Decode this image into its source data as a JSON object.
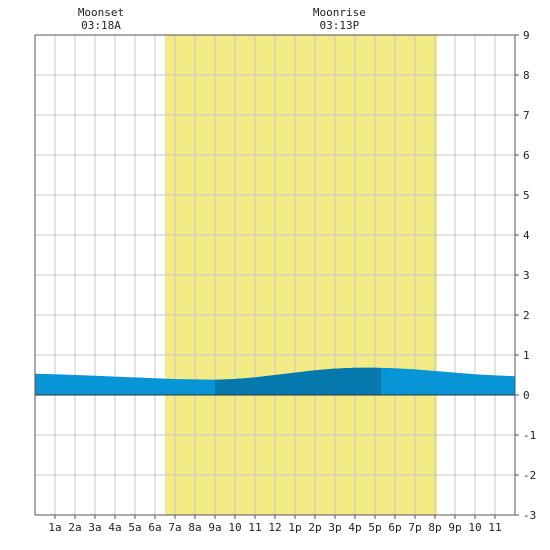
{
  "chart_data": {
    "type": "area",
    "title": "",
    "xlabel": "",
    "ylabel": "",
    "x_tick_labels": [
      "1a",
      "2a",
      "3a",
      "4a",
      "5a",
      "6a",
      "7a",
      "8a",
      "9a",
      "10",
      "11",
      "12",
      "1p",
      "2p",
      "3p",
      "4p",
      "5p",
      "6p",
      "7p",
      "8p",
      "9p",
      "10",
      "11"
    ],
    "y_ticks": [
      9,
      8,
      7,
      6,
      5,
      4,
      3,
      2,
      1,
      0,
      -1,
      -2,
      -3
    ],
    "xlim": [
      0,
      24
    ],
    "ylim": [
      -3,
      9
    ],
    "grid": true,
    "daylight": {
      "start": 6.5,
      "end": 20.1,
      "color": "#f3ec86"
    },
    "events": [
      {
        "name": "Moonset",
        "time": "03:18A",
        "x": 3.3
      },
      {
        "name": "Moonrise",
        "time": "03:13P",
        "x": 15.22
      }
    ],
    "series": [
      {
        "x": [
          0,
          1,
          2,
          3,
          4,
          5,
          6,
          7,
          8,
          9,
          10,
          11,
          12,
          13,
          14,
          15,
          16,
          17,
          18,
          19,
          20,
          21,
          22,
          23,
          24
        ],
        "values": [
          0.53,
          0.52,
          0.5,
          0.48,
          0.46,
          0.44,
          0.42,
          0.4,
          0.39,
          0.38,
          0.4,
          0.44,
          0.5,
          0.56,
          0.62,
          0.66,
          0.68,
          0.68,
          0.67,
          0.64,
          0.6,
          0.56,
          0.52,
          0.49,
          0.47
        ]
      }
    ],
    "highlight_band": {
      "start": 9,
      "end": 17.3
    },
    "colors": {
      "water": "#0795d5",
      "water_highlight": "#0579ad",
      "grid": "#c8c8c8",
      "border": "#555555",
      "zero_line": "#333333"
    }
  }
}
